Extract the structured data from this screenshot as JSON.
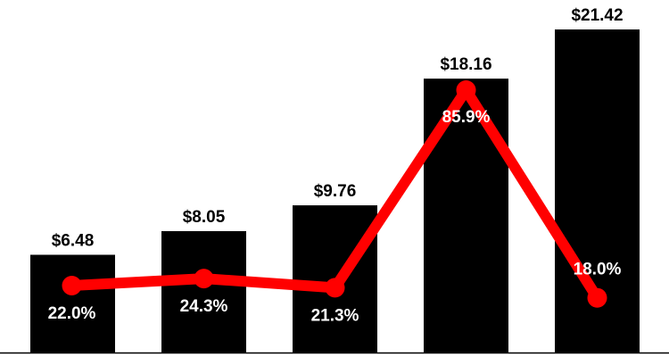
{
  "chart_data": {
    "type": "bar",
    "categories": [
      "",
      "",
      "",
      "",
      ""
    ],
    "series": [
      {
        "type": "bar",
        "values": [
          6.48,
          8.05,
          9.76,
          18.16,
          21.42
        ],
        "labels": [
          "$6.48",
          "$8.05",
          "$9.76",
          "$18.16",
          "$21.42"
        ],
        "color": "#000000"
      },
      {
        "type": "line",
        "values": [
          22.0,
          24.3,
          21.3,
          85.9,
          18.0
        ],
        "labels": [
          "22.0%",
          "24.3%",
          "21.3%",
          "85.9%",
          "18.0%"
        ],
        "color": "#ff0000"
      }
    ],
    "title": "",
    "xlabel": "",
    "ylabel": "",
    "grid": false,
    "axis_line_color": "#000000"
  }
}
